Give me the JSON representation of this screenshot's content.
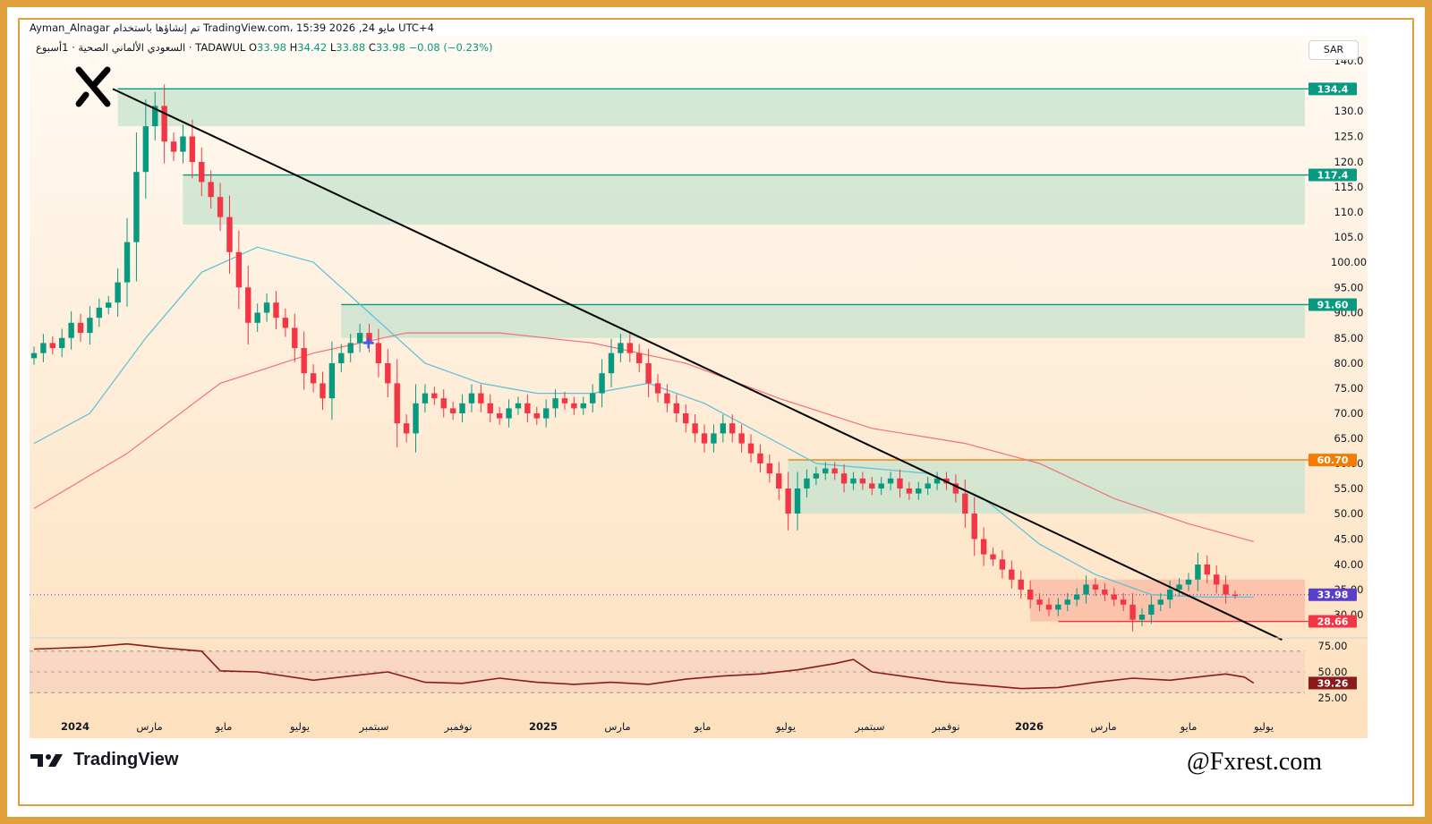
{
  "header": {
    "line1": "Ayman_Alnagar تم إنشاؤها باستخدام TradingView.com، 15:39 2026 ,24 مايو UTC+4",
    "symbol": "السعودي الألماني الصحية · 1أسبوع · TADAWUL",
    "o_label": "O",
    "o_value": "33.98",
    "h_label": "H",
    "h_value": "34.42",
    "l_label": "L",
    "l_value": "33.88",
    "c_label": "C",
    "c_value": "33.98",
    "change": "−0.08 (−0.23%)"
  },
  "currency_button": "SAR",
  "logo_text": "TradingView",
  "watermark": "@Fxrest.com",
  "colors": {
    "up": "#089981",
    "down": "#f23645",
    "trend": "#000000",
    "zone_green": "#c5e3cf",
    "zone_red": "#f9b5a0",
    "ema_fast": "#5bc0d8",
    "ema_slow": "#f0707a",
    "rsi": "#8b1a1a",
    "frame": "#e0a13c"
  },
  "chart_data": [
    {
      "type": "candlestick",
      "timeframe": "1W",
      "price_axis": {
        "ticks": [
          "140.0",
          "130.0",
          "125.0",
          "120.0",
          "115.0",
          "110.0",
          "105.0",
          "100.00",
          "95.00",
          "90.00",
          "85.00",
          "80.00",
          "75.00",
          "70.00",
          "65.00",
          "60.00",
          "55.00",
          "50.00",
          "45.00",
          "40.00",
          "35.00",
          "30.00"
        ],
        "range": [
          24,
          142
        ]
      },
      "time_axis": [
        "2024",
        "مارس",
        "مايو",
        "يوليو",
        "سبتمبر",
        "نوفمبر",
        "2025",
        "مارس",
        "مايو",
        "يوليو",
        "سبتمبر",
        "نوفمبر",
        "2026",
        "مارس",
        "مايو",
        "يوليو"
      ],
      "price_labels": [
        {
          "value": 134.4,
          "text": "134.4",
          "color": "#089981"
        },
        {
          "value": 117.4,
          "text": "117.4",
          "color": "#089981"
        },
        {
          "value": 91.6,
          "text": "91.60",
          "color": "#089981"
        },
        {
          "value": 60.7,
          "text": "60.70",
          "color": "#f57c00"
        },
        {
          "value": 33.98,
          "text": "33.98",
          "color": "#5b3fc4"
        },
        {
          "value": 28.66,
          "text": "28.66",
          "color": "#f23645"
        }
      ],
      "zones": [
        {
          "top": 134.4,
          "bottom": 127.0,
          "color": "green"
        },
        {
          "top": 117.4,
          "bottom": 107.5,
          "color": "green"
        },
        {
          "top": 91.6,
          "bottom": 85.0,
          "color": "green"
        },
        {
          "top": 60.7,
          "bottom": 50.0,
          "color": "green"
        },
        {
          "top": 37.0,
          "bottom": 28.66,
          "color": "red"
        }
      ],
      "trendline": {
        "from": {
          "week": 0,
          "price": 134.4
        },
        "to": {
          "week": 130,
          "price": 25.0
        }
      },
      "current_price": 33.98,
      "closes": [
        82,
        84,
        83,
        85,
        88,
        86,
        89,
        91,
        92,
        96,
        104,
        118,
        127,
        131,
        124,
        122,
        125,
        120,
        116,
        113,
        109,
        102,
        95,
        88,
        90,
        92,
        89,
        87,
        83,
        78,
        76,
        73,
        80,
        82,
        84,
        86,
        84,
        80,
        76,
        68,
        66,
        72,
        74,
        73,
        71,
        70,
        72,
        74,
        72,
        70,
        69,
        71,
        72,
        70,
        69,
        71,
        73,
        72,
        71,
        72,
        74,
        78,
        82,
        84,
        82,
        80,
        76,
        74,
        72,
        70,
        68,
        66,
        64,
        66,
        68,
        66,
        64,
        62,
        60,
        58,
        55,
        50,
        55,
        57,
        58,
        59,
        58,
        56,
        57,
        56,
        55,
        56,
        57,
        55,
        54,
        55,
        56,
        57,
        56,
        54,
        50,
        45,
        42,
        41,
        39,
        37,
        35,
        33,
        32,
        31,
        32,
        33,
        34,
        36,
        35,
        34,
        33,
        32,
        29,
        30,
        32,
        33,
        35,
        36,
        37,
        40,
        38,
        36,
        34,
        33.98
      ],
      "ema_fast_points": [
        [
          0,
          64
        ],
        [
          6,
          70
        ],
        [
          12,
          85
        ],
        [
          18,
          98
        ],
        [
          24,
          103
        ],
        [
          30,
          100
        ],
        [
          36,
          90
        ],
        [
          42,
          80
        ],
        [
          48,
          76
        ],
        [
          54,
          74
        ],
        [
          60,
          74
        ],
        [
          66,
          76
        ],
        [
          72,
          72
        ],
        [
          78,
          66
        ],
        [
          84,
          60
        ],
        [
          90,
          59
        ],
        [
          96,
          58
        ],
        [
          102,
          53
        ],
        [
          108,
          44
        ],
        [
          114,
          38
        ],
        [
          120,
          34
        ],
        [
          126,
          33.5
        ],
        [
          131,
          33.5
        ]
      ],
      "ema_slow_points": [
        [
          0,
          51
        ],
        [
          10,
          62
        ],
        [
          20,
          76
        ],
        [
          30,
          82
        ],
        [
          40,
          86
        ],
        [
          50,
          86
        ],
        [
          60,
          84
        ],
        [
          70,
          80
        ],
        [
          80,
          73
        ],
        [
          90,
          67
        ],
        [
          100,
          64
        ],
        [
          108,
          60
        ],
        [
          116,
          53
        ],
        [
          124,
          48
        ],
        [
          131,
          44.5
        ]
      ]
    },
    {
      "type": "line",
      "indicator": "RSI",
      "ticks": [
        "75.00",
        "50.00",
        "25.00"
      ],
      "range": [
        20,
        80
      ],
      "current_value": 39.26,
      "current_text": "39.26",
      "bands": {
        "upper": 70,
        "mid": 50,
        "lower": 30
      },
      "points": [
        [
          0,
          72
        ],
        [
          6,
          74
        ],
        [
          10,
          77
        ],
        [
          14,
          73
        ],
        [
          18,
          70
        ],
        [
          20,
          51
        ],
        [
          24,
          50
        ],
        [
          30,
          42
        ],
        [
          34,
          46
        ],
        [
          38,
          50
        ],
        [
          42,
          40
        ],
        [
          46,
          39
        ],
        [
          50,
          44
        ],
        [
          54,
          40
        ],
        [
          58,
          38
        ],
        [
          62,
          40
        ],
        [
          66,
          38
        ],
        [
          70,
          43
        ],
        [
          74,
          46
        ],
        [
          78,
          48
        ],
        [
          82,
          52
        ],
        [
          86,
          58
        ],
        [
          88,
          62
        ],
        [
          90,
          50
        ],
        [
          94,
          45
        ],
        [
          98,
          40
        ],
        [
          102,
          37
        ],
        [
          106,
          34
        ],
        [
          110,
          35
        ],
        [
          114,
          40
        ],
        [
          118,
          44
        ],
        [
          122,
          42
        ],
        [
          126,
          46
        ],
        [
          128,
          48
        ],
        [
          130,
          45
        ],
        [
          131,
          39.26
        ]
      ]
    }
  ]
}
